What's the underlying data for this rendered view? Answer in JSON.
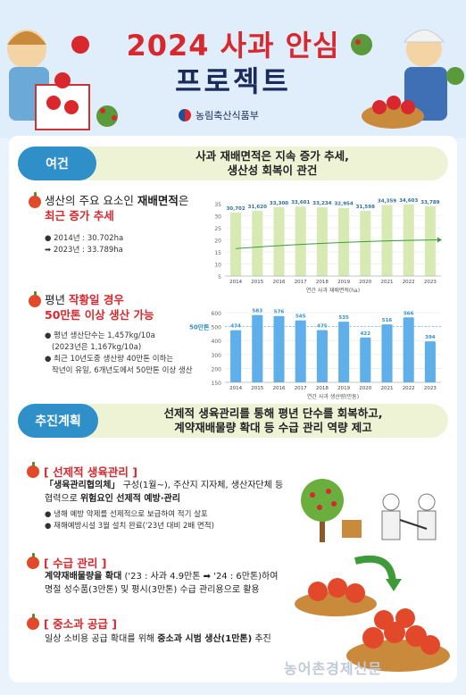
{
  "header": {
    "title_line1": "2024 사과 안심",
    "title_line2": "프로젝트",
    "ministry": "농림축산식품부"
  },
  "section1": {
    "tag": "여건",
    "headline_1": "사과 재배면적은 지속 증가 추세,",
    "headline_2": "생산성 회복이 관건",
    "item1": {
      "title_pre": "생산의 주요 요소인 ",
      "title_bold": "재배면적",
      "title_post": "은",
      "title_red": "최근 증가 추세",
      "bullet1": "2014년 : 30.702ha",
      "bullet2": "➡ 2023년 : 33.789ha"
    },
    "item2": {
      "title_pre": "평년 ",
      "title_red1": "작황일 경우",
      "title_red2": "50만톤 이상 생산 가능",
      "bullet1": "평년 생산단수는 1,457kg/10a",
      "bullet1b": "(2023년은 1,167kg/10a)",
      "bullet2": "최근 10년도중 생산량 40만톤 이하는",
      "bullet2b": "작년이 유일, 6개년도에서 50만톤 이상 생산"
    }
  },
  "section2": {
    "tag": "추진계획",
    "headline_1": "선제적 생육관리를 통해 평년 단수를 회복하고,",
    "headline_2": "계약재배물량 확대 등 수급 관리 역량 제고",
    "plan1": {
      "title": "[ 선제적 생육관리 ]",
      "line1_bold": "「생육관리협의체」",
      "line1_rest": " 구성(1월~), 주산지 지자체, 생산자단체 등",
      "line2_pre": "협력으로 ",
      "line2_bold": "위험요인 선제적 예방·관리",
      "bullet1": "냉해 예방 약제를 선제적으로 보급하여 적기 살포",
      "bullet2": "재해예방시설 3월 설치 완료('23년 대비 2배 면적)"
    },
    "plan2": {
      "title": "[ 수급 관리 ]",
      "line1_bold": "계약재배물량을 확대",
      "line1_rest": " ('23 : 사과 4.9만톤 ➡ '24 : 6만톤)하여",
      "line2": "명절 성수품(3만톤) 및 평시(3만톤) 수급 관리용으로 활용"
    },
    "plan3": {
      "title": "[ 중소과 공급 ]",
      "line1_pre": "일상 소비용 공급 확대를 위해 ",
      "line1_bold": "중소과 시범 생산(1만톤)",
      "line1_post": " 추진"
    }
  },
  "watermark": "농어촌경제신문",
  "colors": {
    "accent_red": "#d8282d",
    "accent_blue": "#2f8fc9",
    "navy": "#1b2a5c",
    "bar_green": "#d7eab3",
    "bar_blue": "#5fb0ea"
  },
  "chart_data": [
    {
      "type": "bar",
      "title": "연간 사과 재배면적(ha)",
      "categories": [
        "2014",
        "2015",
        "2016",
        "2017",
        "2018",
        "2019",
        "2020",
        "2021",
        "2022",
        "2023"
      ],
      "values": [
        30702,
        31620,
        33300,
        33601,
        33234,
        32954,
        31598,
        34359,
        34603,
        33789
      ],
      "value_labels": [
        "30,702",
        "31,620",
        "33,300",
        "33,601",
        "33,234",
        "32,954",
        "31,598",
        "34,359",
        "34,603",
        "33,789"
      ],
      "y_ticks": [
        "35",
        "30",
        "25",
        "20",
        "15",
        "10",
        "5"
      ],
      "ylim": [
        0,
        35000
      ],
      "trendline": true
    },
    {
      "type": "bar",
      "title": "연간 사과 생산량(만톤)",
      "categories": [
        "2014",
        "2015",
        "2016",
        "2017",
        "2018",
        "2019",
        "2020",
        "2021",
        "2022",
        "2023"
      ],
      "values": [
        474,
        583,
        576,
        545,
        475,
        535,
        422,
        516,
        566,
        394
      ],
      "y_ticks": [
        "600",
        "500",
        "400",
        "300",
        "200",
        "150"
      ],
      "ylim": [
        100,
        600
      ],
      "reference_label": "50만톤",
      "reference_value": 500
    }
  ]
}
